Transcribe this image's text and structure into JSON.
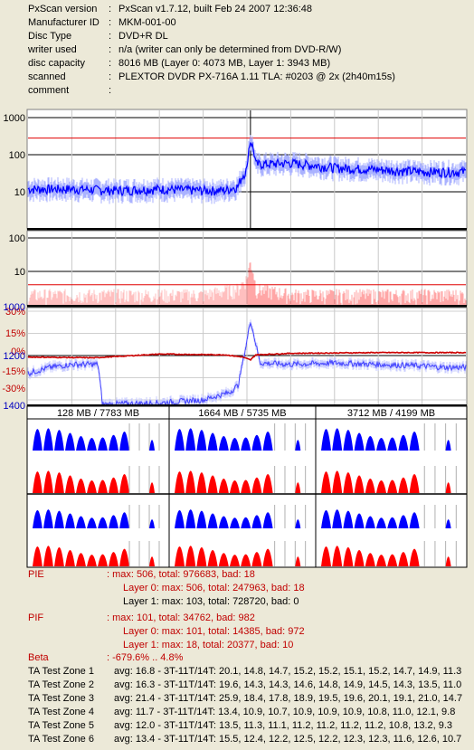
{
  "header": {
    "rows": [
      {
        "key": "PxScan version",
        "value": "PxScan v1.7.12, built Feb 24 2007 12:36:48"
      },
      {
        "key": "Manufacturer ID",
        "value": "MKM-001-00"
      },
      {
        "key": "Disc Type",
        "value": "DVD+R DL"
      },
      {
        "key": "writer used",
        "value": "n/a (writer can only be determined from DVD-R/W)"
      },
      {
        "key": "disc capacity",
        "value": "8016 MB (Layer 0: 4073 MB,  Layer 1: 3943 MB)"
      },
      {
        "key": "scanned",
        "value": "PLEXTOR DVDR PX-716A 1.11 TLA: #0203 @ 2x (2h40m15s)"
      },
      {
        "key": "comment",
        "value": ""
      }
    ],
    "separator": ":"
  },
  "colors": {
    "pie": "#0000ff",
    "pif": "#ff0000",
    "jitter": "#4040ff",
    "beta": "#cc0000",
    "label_red": "#c00000",
    "tick_blue": "#0000c0"
  },
  "chart_data": [
    {
      "type": "line",
      "name": "PIE",
      "y_scale": "log",
      "ylim": [
        1,
        1000
      ],
      "tick_labels": [
        "1000",
        "100",
        "10"
      ],
      "threshold": 280,
      "layer_break_fraction": 0.508,
      "series": [
        {
          "values_x_fraction": [
            0,
            0.1,
            0.2,
            0.3,
            0.4,
            0.45,
            0.48,
            0.5,
            0.508,
            0.52,
            0.6,
            0.7,
            0.8,
            0.9,
            1.0
          ],
          "values": [
            12,
            12,
            11,
            12,
            11,
            11,
            14,
            40,
            240,
            55,
            60,
            45,
            40,
            35,
            35
          ]
        }
      ]
    },
    {
      "type": "bar",
      "name": "PIF",
      "y_scale": "log",
      "ylim": [
        1,
        100
      ],
      "tick_labels": [
        "100",
        "10"
      ],
      "threshold": 4,
      "values_x_fraction": [
        0,
        0.2,
        0.4,
        0.48,
        0.5,
        0.508,
        0.52,
        0.6,
        0.8,
        1.0
      ],
      "values": [
        2,
        2,
        2,
        3,
        6,
        18,
        3,
        2,
        2,
        2
      ]
    },
    {
      "type": "line",
      "name": "Jitter / Beta",
      "tick_labels_left_blue": [
        "1000",
        "1200",
        "1400"
      ],
      "tick_labels_left_red": [
        "30%",
        "15%",
        "0%",
        "-15%",
        "-30%"
      ],
      "series": [
        {
          "name": "beta",
          "values_x_fraction": [
            0,
            0.15,
            0.3,
            0.45,
            0.49,
            0.508,
            0.52,
            0.6,
            0.8,
            1.0
          ],
          "values": [
            -1.0,
            -1.5,
            1.0,
            0.5,
            -1.0,
            -3.0,
            0.5,
            1.5,
            2.0,
            2.0
          ]
        },
        {
          "name": "jitter",
          "values_x_fraction": [
            0,
            0.05,
            0.1,
            0.16,
            0.17,
            0.3,
            0.4,
            0.46,
            0.48,
            0.5,
            0.508,
            0.53,
            0.6,
            0.7,
            0.8,
            0.9,
            0.95,
            1.0
          ],
          "values": [
            -12,
            -8,
            -6,
            -6,
            -33,
            -32,
            -30,
            -25,
            -20,
            10,
            24,
            -5,
            -6,
            -5,
            -6,
            -7,
            -8,
            -8
          ]
        }
      ]
    }
  ],
  "ta_panels": {
    "headers": [
      "128 MB / 7783 MB",
      "1664 MB / 5735 MB",
      "3712 MB / 4199 MB"
    ]
  },
  "stats": {
    "pie": {
      "label": "PIE",
      "summary": ": max: 506, total: 976683, bad: 18",
      "layer0": "Layer 0: max: 506, total: 247963, bad: 18",
      "layer1": "Layer 1: max: 103, total: 728720, bad: 0"
    },
    "pif": {
      "label": "PIF",
      "summary": ": max: 101, total: 34762, bad: 982",
      "layer0": "Layer 0: max: 101, total: 14385, bad: 972",
      "layer1": "Layer 1: max: 18, total: 20377, bad: 10"
    },
    "beta": {
      "label": "Beta",
      "summary": ": -679.6% .. 4.8%"
    },
    "ta_zones": [
      {
        "label": "TA Test Zone 1",
        "value": "avg: 16.8 - 3T-11T/14T: 20.1, 14.8, 14.7, 15.2, 15.2, 15.1, 15.2, 14.7, 14.9, 11.3"
      },
      {
        "label": "TA Test Zone 2",
        "value": "avg: 16.3 - 3T-11T/14T: 19.6, 14.3, 14.3, 14.6, 14.8, 14.9, 14.5, 14.3, 13.5, 11.0"
      },
      {
        "label": "TA Test Zone 3",
        "value": "avg: 21.4 - 3T-11T/14T: 25.9, 18.4, 17.8, 18.9, 19.5, 19.6, 20.1, 19.1, 21.0, 14.7"
      },
      {
        "label": "TA Test Zone 4",
        "value": "avg: 11.7 - 3T-11T/14T: 13.4, 10.9, 10.7, 10.9, 10.9, 10.9, 10.8, 11.0, 12.1, 9.8"
      },
      {
        "label": "TA Test Zone 5",
        "value": "avg: 12.0 - 3T-11T/14T: 13.5, 11.3, 11.1, 11.2, 11.2, 11.2, 11.2, 10.8, 13.2, 9.3"
      },
      {
        "label": "TA Test Zone 6",
        "value": "avg: 13.4 - 3T-11T/14T: 15.5, 12.4, 12.2, 12.5, 12.2, 12.3, 12.3, 11.6, 12.6, 10.7"
      }
    ]
  }
}
